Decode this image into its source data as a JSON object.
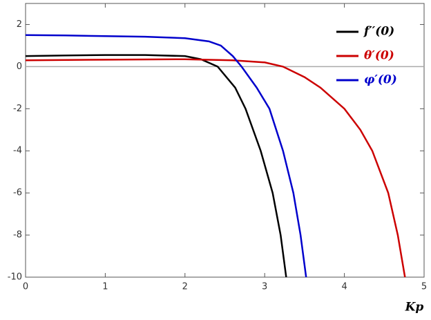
{
  "chart_data": {
    "type": "line",
    "x_label": "Kp",
    "xlim": [
      0,
      5
    ],
    "xticks": [
      0,
      1,
      2,
      3,
      4,
      5
    ],
    "ylim": [
      -10,
      3
    ],
    "yticks": [
      2,
      0,
      -2,
      -4,
      -6,
      -8,
      -10
    ],
    "zero_line": true,
    "legend": "top-right",
    "series": [
      {
        "name": "f′′(0)",
        "color": "#000000",
        "x": [
          0,
          0.5,
          1,
          1.5,
          2,
          2.2,
          2.41,
          2.63,
          2.76,
          2.95,
          3.1,
          3.2,
          3.27
        ],
        "values": [
          0.5,
          0.53,
          0.55,
          0.55,
          0.5,
          0.35,
          0,
          -1,
          -2,
          -4,
          -6,
          -8,
          -10
        ]
      },
      {
        "name": "θ′(0)",
        "color": "#cc0000",
        "x": [
          0,
          1,
          2,
          2.6,
          3,
          3.23,
          3.5,
          3.7,
          4.0,
          4.2,
          4.35,
          4.55,
          4.67,
          4.76
        ],
        "values": [
          0.3,
          0.33,
          0.35,
          0.3,
          0.2,
          0,
          -0.5,
          -1,
          -2,
          -3,
          -4,
          -6,
          -8,
          -10
        ]
      },
      {
        "name": "φ′(0)",
        "color": "#0000cc",
        "x": [
          0,
          0.5,
          1,
          1.5,
          2,
          2.3,
          2.45,
          2.6,
          2.71,
          2.9,
          3.06,
          3.23,
          3.36,
          3.45,
          3.52
        ],
        "values": [
          1.5,
          1.48,
          1.45,
          1.42,
          1.35,
          1.2,
          1.0,
          0.5,
          0,
          -1,
          -2,
          -4,
          -6,
          -8,
          -10
        ]
      }
    ]
  }
}
